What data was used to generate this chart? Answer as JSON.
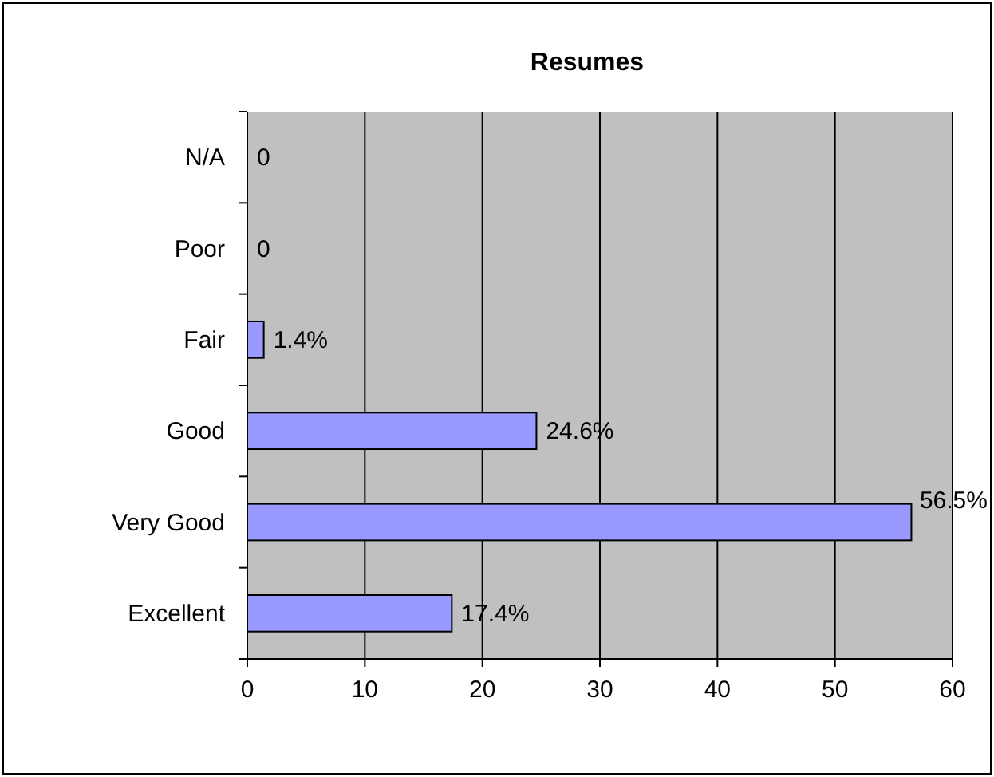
{
  "chart_data": {
    "type": "bar",
    "title": "Resumes",
    "orientation": "horizontal",
    "categories": [
      "N/A",
      "Poor",
      "Fair",
      "Good",
      "Very Good",
      "Excellent"
    ],
    "values": [
      0,
      0,
      1.4,
      24.6,
      56.5,
      17.4
    ],
    "value_labels": [
      "0",
      "0",
      "1.4%",
      "24.6%",
      "56.5%",
      "17.4%"
    ],
    "color": "#9999ff",
    "xlim": [
      0,
      60
    ],
    "xticks": [
      0,
      10,
      20,
      30,
      40,
      50,
      60
    ],
    "grid": "x"
  }
}
